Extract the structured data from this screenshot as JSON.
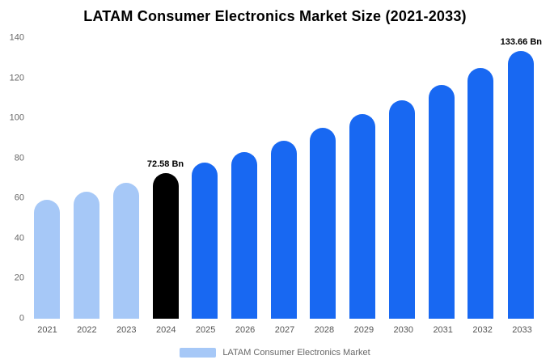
{
  "chart_data": {
    "type": "bar",
    "title": "LATAM Consumer Electronics Market Size (2021-2033)",
    "categories": [
      "2021",
      "2022",
      "2023",
      "2024",
      "2025",
      "2026",
      "2027",
      "2028",
      "2029",
      "2030",
      "2031",
      "2032",
      "2033"
    ],
    "values": [
      59.2,
      63.4,
      67.8,
      72.58,
      77.7,
      83.1,
      88.9,
      95.2,
      101.9,
      109.0,
      116.7,
      124.9,
      133.66
    ],
    "unit": "Bn",
    "xlabel": "",
    "ylabel": "",
    "ylim": [
      0,
      140
    ],
    "y_ticks": [
      0,
      20,
      40,
      60,
      80,
      100,
      120,
      140
    ],
    "grid": false,
    "legend_position": "bottom",
    "bar_colors": [
      "#a6c8f7",
      "#a6c8f7",
      "#a6c8f7",
      "#000000",
      "#1868f2",
      "#1868f2",
      "#1868f2",
      "#1868f2",
      "#1868f2",
      "#1868f2",
      "#1868f2",
      "#1868f2",
      "#1868f2"
    ],
    "annotations": [
      {
        "category": "2024",
        "text": "72.58 Bn"
      },
      {
        "category": "2033",
        "text": "133.66 Bn"
      }
    ],
    "legend": [
      {
        "label": "LATAM Consumer Electronics Market",
        "color": "#a6c8f7"
      }
    ]
  },
  "colors": {
    "light_blue": "#a6c8f7",
    "primary_blue": "#1868f2",
    "highlight_black": "#000000",
    "axis_text": "#666666",
    "background": "#ffffff"
  }
}
